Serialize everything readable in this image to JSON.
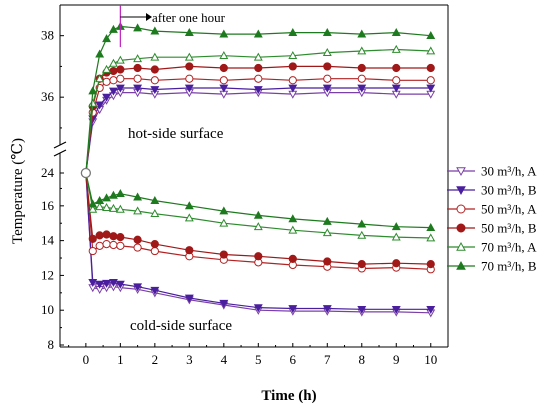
{
  "chart_data": {
    "type": "line",
    "xlabel": "Time (h)",
    "ylabel": "Temperature (℃)",
    "x_ticks": [
      "0",
      "1",
      "2",
      "3",
      "4",
      "5",
      "6",
      "7",
      "8",
      "9",
      "10"
    ],
    "xlim": [
      -0.75,
      10.5
    ],
    "axis_break": true,
    "upper_axis": {
      "ylim": [
        34.9,
        38.9
      ],
      "ticks": [
        "36",
        "38"
      ]
    },
    "lower_axis": {
      "ylim": [
        8,
        17.6
      ],
      "ticks": [
        "8",
        "10",
        "12",
        "14",
        "16"
      ],
      "extra_tick": "24"
    },
    "legend_position": "right",
    "annotations": {
      "after_one_hour": "after one hour",
      "hot_side": "hot-side surface",
      "cold_side": "cold-side surface"
    },
    "series": [
      {
        "name": "30 m³/h, A",
        "color": "#7B3FA8",
        "marker": "triangle-down",
        "filled": false,
        "side": "hot",
        "x": [
          0,
          0.2,
          0.4,
          0.6,
          0.8,
          1,
          1.5,
          2,
          3,
          4,
          5,
          6,
          7,
          8,
          9,
          10
        ],
        "y": [
          24,
          35.2,
          35.6,
          35.9,
          36.05,
          36.15,
          36.15,
          36.1,
          36.15,
          36.1,
          36.15,
          36.1,
          36.15,
          36.15,
          36.1,
          36.1
        ]
      },
      {
        "name": "30 m³/h, B",
        "color": "#4A1F9E",
        "marker": "triangle-down",
        "filled": true,
        "side": "hot",
        "x": [
          0,
          0.2,
          0.4,
          0.6,
          0.8,
          1,
          1.5,
          2,
          3,
          4,
          5,
          6,
          7,
          8,
          9,
          10
        ],
        "y": [
          24,
          35.3,
          35.75,
          36.0,
          36.2,
          36.3,
          36.3,
          36.25,
          36.3,
          36.3,
          36.25,
          36.3,
          36.3,
          36.3,
          36.3,
          36.3
        ]
      },
      {
        "name": "50 m³/h, A",
        "color": "#B22222",
        "marker": "circle",
        "filled": false,
        "side": "hot",
        "x": [
          0,
          0.2,
          0.4,
          0.6,
          0.8,
          1,
          1.5,
          2,
          3,
          4,
          5,
          6,
          7,
          8,
          9,
          10
        ],
        "y": [
          24,
          35.5,
          36.3,
          36.5,
          36.55,
          36.6,
          36.6,
          36.55,
          36.6,
          36.55,
          36.6,
          36.55,
          36.6,
          36.6,
          36.55,
          36.55
        ]
      },
      {
        "name": "50 m³/h, B",
        "color": "#A01818",
        "marker": "circle",
        "filled": true,
        "side": "hot",
        "x": [
          0,
          0.2,
          0.4,
          0.6,
          0.8,
          1,
          1.5,
          2,
          3,
          4,
          5,
          6,
          7,
          8,
          9,
          10
        ],
        "y": [
          24,
          35.7,
          36.6,
          36.8,
          36.85,
          36.9,
          36.95,
          36.9,
          37.0,
          36.95,
          36.95,
          37.0,
          37.0,
          36.95,
          36.95,
          36.95
        ]
      },
      {
        "name": "70 m³/h, A",
        "color": "#2E8B2E",
        "marker": "triangle-up",
        "filled": false,
        "side": "hot",
        "x": [
          0,
          0.2,
          0.4,
          0.6,
          0.8,
          1,
          1.5,
          2,
          3,
          4,
          5,
          6,
          7,
          8,
          9,
          10
        ],
        "y": [
          24,
          35.8,
          36.6,
          36.9,
          37.1,
          37.2,
          37.25,
          37.3,
          37.3,
          37.35,
          37.3,
          37.35,
          37.45,
          37.5,
          37.55,
          37.5
        ]
      },
      {
        "name": "70 m³/h, B",
        "color": "#1E7A1E",
        "marker": "triangle-up",
        "filled": true,
        "side": "hot",
        "x": [
          0,
          0.2,
          0.4,
          0.6,
          0.8,
          1,
          1.5,
          2,
          3,
          4,
          5,
          6,
          7,
          8,
          9,
          10
        ],
        "y": [
          24,
          36.2,
          37.4,
          37.9,
          38.2,
          38.3,
          38.25,
          38.15,
          38.1,
          38.05,
          38.05,
          38.1,
          38.1,
          38.05,
          38.1,
          38.0
        ]
      },
      {
        "name": "30 m³/h, A",
        "color": "#7B3FA8",
        "marker": "triangle-down",
        "filled": false,
        "side": "cold",
        "x": [
          0,
          0.2,
          0.4,
          0.6,
          0.8,
          1,
          1.5,
          2,
          3,
          4,
          5,
          6,
          7,
          8,
          9,
          10
        ],
        "y": [
          24,
          11.3,
          11.2,
          11.3,
          11.35,
          11.3,
          11.2,
          11.0,
          10.6,
          10.3,
          10.0,
          9.95,
          9.95,
          9.9,
          9.9,
          9.85
        ]
      },
      {
        "name": "30 m³/h, B",
        "color": "#4A1F9E",
        "marker": "triangle-down",
        "filled": true,
        "side": "cold",
        "x": [
          0,
          0.2,
          0.4,
          0.6,
          0.8,
          1,
          1.5,
          2,
          3,
          4,
          5,
          6,
          7,
          8,
          9,
          10
        ],
        "y": [
          24,
          11.6,
          11.5,
          11.55,
          11.6,
          11.5,
          11.35,
          11.15,
          10.7,
          10.4,
          10.15,
          10.1,
          10.1,
          10.05,
          10.05,
          10.05
        ]
      },
      {
        "name": "50 m³/h, A",
        "color": "#B22222",
        "marker": "circle",
        "filled": false,
        "side": "cold",
        "x": [
          0,
          0.2,
          0.4,
          0.6,
          0.8,
          1,
          1.5,
          2,
          3,
          4,
          5,
          6,
          7,
          8,
          9,
          10
        ],
        "y": [
          24,
          13.4,
          13.7,
          13.8,
          13.75,
          13.7,
          13.6,
          13.4,
          13.1,
          12.9,
          12.75,
          12.6,
          12.5,
          12.4,
          12.45,
          12.35
        ]
      },
      {
        "name": "50 m³/h, B",
        "color": "#A01818",
        "marker": "circle",
        "filled": true,
        "side": "cold",
        "x": [
          0,
          0.2,
          0.4,
          0.6,
          0.8,
          1,
          1.5,
          2,
          3,
          4,
          5,
          6,
          7,
          8,
          9,
          10
        ],
        "y": [
          24,
          14.1,
          14.3,
          14.35,
          14.25,
          14.2,
          14.05,
          13.8,
          13.45,
          13.2,
          13.1,
          12.95,
          12.8,
          12.65,
          12.7,
          12.65
        ]
      },
      {
        "name": "70 m³/h, A",
        "color": "#2E8B2E",
        "marker": "triangle-up",
        "filled": false,
        "side": "cold",
        "x": [
          0,
          0.2,
          0.4,
          0.6,
          0.8,
          1,
          1.5,
          2,
          3,
          4,
          5,
          6,
          7,
          8,
          9,
          10
        ],
        "y": [
          24,
          15.8,
          15.95,
          15.9,
          15.85,
          15.8,
          15.7,
          15.55,
          15.3,
          15.0,
          14.8,
          14.6,
          14.45,
          14.3,
          14.2,
          14.15
        ]
      },
      {
        "name": "70 m³/h, B",
        "color": "#1E7A1E",
        "marker": "triangle-up",
        "filled": true,
        "side": "cold",
        "x": [
          0,
          0.2,
          0.4,
          0.6,
          0.8,
          1,
          1.5,
          2,
          3,
          4,
          5,
          6,
          7,
          8,
          9,
          10
        ],
        "y": [
          24,
          16.1,
          16.3,
          16.45,
          16.6,
          16.7,
          16.5,
          16.3,
          16.0,
          15.7,
          15.45,
          15.25,
          15.1,
          14.95,
          14.8,
          14.75
        ]
      }
    ]
  }
}
